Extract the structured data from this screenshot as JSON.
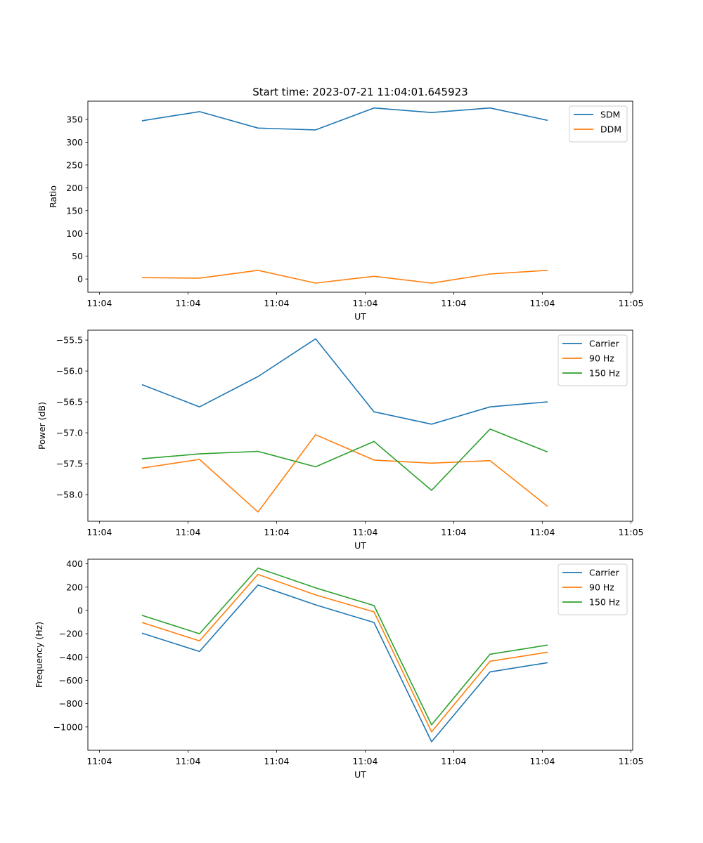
{
  "figure": {
    "title": "Start time: 2023-07-21 11:04:01.645923"
  },
  "chart_data": [
    {
      "type": "line",
      "title": "Start time: 2023-07-21 11:04:01.645923",
      "xlabel": "UT",
      "ylabel": "Ratio",
      "x_tick_labels": [
        "11:04",
        "11:04",
        "11:04",
        "11:04",
        "11:04",
        "11:04",
        "11:05"
      ],
      "x_ticks_seconds": [
        0,
        10,
        20,
        30,
        40,
        50,
        60
      ],
      "xlim_seconds": [
        -1.3,
        60.2
      ],
      "x_seconds": [
        4.8,
        11.3,
        17.9,
        24.4,
        31.0,
        37.5,
        44.1,
        50.6
      ],
      "ylim": [
        -29,
        390
      ],
      "y_ticks": [
        0,
        50,
        100,
        150,
        200,
        250,
        300,
        350
      ],
      "y_tick_labels": [
        "0",
        "50",
        "100",
        "150",
        "200",
        "250",
        "300",
        "350"
      ],
      "legend_position": "top-right",
      "grid": false,
      "series": [
        {
          "name": "SDM",
          "color": "#1f77b4",
          "values": [
            347,
            367,
            331,
            327,
            375,
            365,
            375,
            348
          ]
        },
        {
          "name": "DDM",
          "color": "#ff7f0e",
          "values": [
            3,
            2,
            19,
            -9,
            6,
            -9,
            11,
            19
          ]
        }
      ]
    },
    {
      "type": "line",
      "title": "",
      "xlabel": "UT",
      "ylabel": "Power (dB)",
      "x_tick_labels": [
        "11:04",
        "11:04",
        "11:04",
        "11:04",
        "11:04",
        "11:04",
        "11:05"
      ],
      "x_ticks_seconds": [
        0,
        10,
        20,
        30,
        40,
        50,
        60
      ],
      "xlim_seconds": [
        -1.3,
        60.2
      ],
      "x_seconds": [
        4.8,
        11.3,
        17.9,
        24.4,
        31.0,
        37.5,
        44.1,
        50.6
      ],
      "ylim": [
        -58.43,
        -55.34
      ],
      "y_ticks": [
        -58.0,
        -57.5,
        -57.0,
        -56.5,
        -56.0,
        -55.5
      ],
      "y_tick_labels": [
        "−58.0",
        "−57.5",
        "−57.0",
        "−56.5",
        "−56.0",
        "−55.5"
      ],
      "legend_position": "top-right",
      "grid": false,
      "series": [
        {
          "name": "Carrier",
          "color": "#1f77b4",
          "values": [
            -56.22,
            -56.58,
            -56.09,
            -55.48,
            -56.66,
            -56.86,
            -56.58,
            -56.5
          ]
        },
        {
          "name": "90 Hz",
          "color": "#ff7f0e",
          "values": [
            -57.57,
            -57.43,
            -58.28,
            -57.03,
            -57.44,
            -57.49,
            -57.45,
            -58.19
          ]
        },
        {
          "name": "150 Hz",
          "color": "#2ca02c",
          "values": [
            -57.42,
            -57.34,
            -57.3,
            -57.55,
            -57.14,
            -57.93,
            -56.94,
            -57.31
          ]
        }
      ]
    },
    {
      "type": "line",
      "title": "",
      "xlabel": "UT",
      "ylabel": "Frequency (Hz)",
      "x_tick_labels": [
        "11:04",
        "11:04",
        "11:04",
        "11:04",
        "11:04",
        "11:04",
        "11:05"
      ],
      "x_ticks_seconds": [
        0,
        10,
        20,
        30,
        40,
        50,
        60
      ],
      "xlim_seconds": [
        -1.3,
        60.2
      ],
      "x_seconds": [
        4.8,
        11.3,
        17.9,
        24.4,
        31.0,
        37.5,
        44.1,
        50.6
      ],
      "ylim": [
        -1200,
        440
      ],
      "y_ticks": [
        -1000,
        -800,
        -600,
        -400,
        -200,
        0,
        200,
        400
      ],
      "y_tick_labels": [
        "−1000",
        "−800",
        "−600",
        "−400",
        "−200",
        "0",
        "200",
        "400"
      ],
      "legend_position": "top-right",
      "grid": false,
      "series": [
        {
          "name": "Carrier",
          "color": "#1f77b4",
          "values": [
            -194,
            -352,
            218,
            48,
            -103,
            -1127,
            -527,
            -448
          ]
        },
        {
          "name": "90 Hz",
          "color": "#ff7f0e",
          "values": [
            -103,
            -261,
            309,
            133,
            -12,
            -1042,
            -436,
            -358
          ]
        },
        {
          "name": "150 Hz",
          "color": "#2ca02c",
          "values": [
            -42,
            -200,
            364,
            194,
            42,
            -982,
            -376,
            -297
          ]
        }
      ]
    }
  ]
}
